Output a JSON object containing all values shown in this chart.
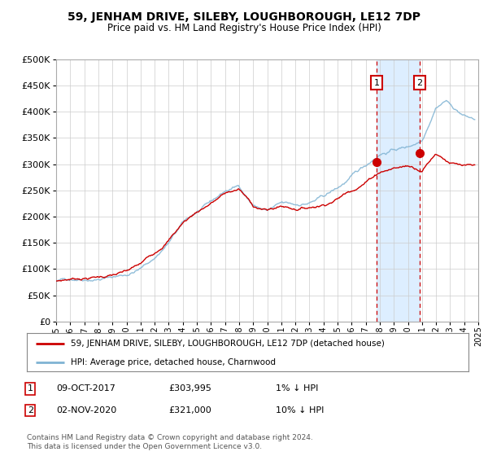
{
  "title": "59, JENHAM DRIVE, SILEBY, LOUGHBOROUGH, LE12 7DP",
  "subtitle": "Price paid vs. HM Land Registry's House Price Index (HPI)",
  "legend_line1": "59, JENHAM DRIVE, SILEBY, LOUGHBOROUGH, LE12 7DP (detached house)",
  "legend_line2": "HPI: Average price, detached house, Charnwood",
  "annotation1_label": "1",
  "annotation1_date": "09-OCT-2017",
  "annotation1_price": "£303,995",
  "annotation1_hpi": "1% ↓ HPI",
  "annotation1_value": 303995,
  "annotation1_year": 2017.78,
  "annotation2_label": "2",
  "annotation2_date": "02-NOV-2020",
  "annotation2_price": "£321,000",
  "annotation2_hpi": "10% ↓ HPI",
  "annotation2_value": 321000,
  "annotation2_year": 2020.84,
  "price_color": "#cc0000",
  "hpi_color": "#7fb3d3",
  "background_color": "#ffffff",
  "plot_bg_color": "#ffffff",
  "shaded_region_color": "#ddeeff",
  "grid_color": "#cccccc",
  "xmin": 1995,
  "xmax": 2025,
  "ymin": 0,
  "ymax": 500000,
  "yticks": [
    0,
    50000,
    100000,
    150000,
    200000,
    250000,
    300000,
    350000,
    400000,
    450000,
    500000
  ],
  "xticks": [
    1995,
    1996,
    1997,
    1998,
    1999,
    2000,
    2001,
    2002,
    2003,
    2004,
    2005,
    2006,
    2007,
    2008,
    2009,
    2010,
    2011,
    2012,
    2013,
    2014,
    2015,
    2016,
    2017,
    2018,
    2019,
    2020,
    2021,
    2022,
    2023,
    2024,
    2025
  ],
  "footer": "Contains HM Land Registry data © Crown copyright and database right 2024.\nThis data is licensed under the Open Government Licence v3.0."
}
